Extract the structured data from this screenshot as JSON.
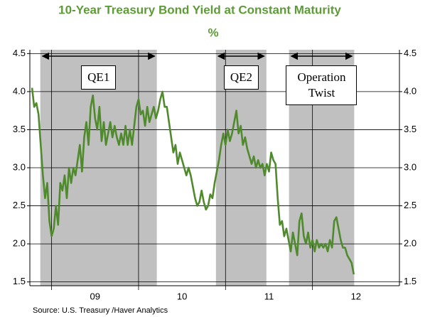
{
  "chart_data": {
    "type": "line",
    "title": "10-Year Treasury Bond Yield at Constant Maturity",
    "subtitle": "%",
    "source": "Source:  U.S. Treasury /Haver Analytics",
    "xlim": [
      2008.75,
      2013.0
    ],
    "ylim": [
      1.45,
      4.55
    ],
    "y2lim": [
      1.45,
      4.55
    ],
    "xticks": [
      {
        "value": 2009,
        "label": "09"
      },
      {
        "value": 2010,
        "label": "10"
      },
      {
        "value": 2011,
        "label": "11"
      },
      {
        "value": 2012,
        "label": "12"
      }
    ],
    "yticks": [
      {
        "value": 1.5,
        "label": "1.5"
      },
      {
        "value": 2,
        "label": "2.0"
      },
      {
        "value": 2.5,
        "label": "2.5"
      },
      {
        "value": 3,
        "label": "3.0"
      },
      {
        "value": 3.5,
        "label": "3.5"
      },
      {
        "value": 4,
        "label": "4.0"
      },
      {
        "value": 4.5,
        "label": "4.5"
      }
    ],
    "y2ticks": [
      {
        "value": 1.5,
        "label": "1.5"
      },
      {
        "value": 2,
        "label": "2.0"
      },
      {
        "value": 2.5,
        "label": "2.5"
      },
      {
        "value": 3,
        "label": "3.0"
      },
      {
        "value": 3.5,
        "label": "3.5"
      },
      {
        "value": 4,
        "label": "4.0"
      },
      {
        "value": 4.5,
        "label": "4.5"
      }
    ],
    "grid": true,
    "regions": [
      {
        "label": "QE1",
        "start": 2008.87,
        "end": 2010.21
      },
      {
        "label": "QE2",
        "start": 2010.89,
        "end": 2011.47
      },
      {
        "label": "Operation Twist",
        "start": 2011.73,
        "end": 2012.48
      }
    ],
    "region_color": "#c0c0c0",
    "x": [
      2008.775,
      2008.8,
      2008.825,
      2008.85,
      2008.875,
      2008.9,
      2008.925,
      2008.95,
      2008.975,
      2009.0,
      2009.025,
      2009.05,
      2009.075,
      2009.1,
      2009.125,
      2009.15,
      2009.175,
      2009.2,
      2009.225,
      2009.25,
      2009.275,
      2009.3,
      2009.325,
      2009.35,
      2009.375,
      2009.4,
      2009.425,
      2009.45,
      2009.475,
      2009.5,
      2009.525,
      2009.55,
      2009.575,
      2009.6,
      2009.625,
      2009.65,
      2009.675,
      2009.7,
      2009.725,
      2009.75,
      2009.775,
      2009.8,
      2009.825,
      2009.85,
      2009.875,
      2009.9,
      2009.925,
      2009.95,
      2009.975,
      2010.0,
      2010.025,
      2010.05,
      2010.075,
      2010.1,
      2010.125,
      2010.15,
      2010.175,
      2010.2,
      2010.225,
      2010.25,
      2010.275,
      2010.3,
      2010.325,
      2010.35,
      2010.375,
      2010.4,
      2010.425,
      2010.45,
      2010.475,
      2010.5,
      2010.525,
      2010.55,
      2010.575,
      2010.6,
      2010.625,
      2010.65,
      2010.675,
      2010.7,
      2010.725,
      2010.75,
      2010.775,
      2010.8,
      2010.825,
      2010.85,
      2010.875,
      2010.9,
      2010.925,
      2010.95,
      2010.975,
      2011.0,
      2011.025,
      2011.05,
      2011.075,
      2011.1,
      2011.125,
      2011.15,
      2011.175,
      2011.2,
      2011.225,
      2011.25,
      2011.275,
      2011.3,
      2011.325,
      2011.35,
      2011.375,
      2011.4,
      2011.425,
      2011.45,
      2011.475,
      2011.5,
      2011.525,
      2011.55,
      2011.575,
      2011.6,
      2011.625,
      2011.65,
      2011.675,
      2011.7,
      2011.725,
      2011.75,
      2011.775,
      2011.8,
      2011.825,
      2011.85,
      2011.875,
      2011.9,
      2011.925,
      2011.95,
      2011.975,
      2012.0,
      2012.025,
      2012.05,
      2012.075,
      2012.1,
      2012.125,
      2012.15,
      2012.175,
      2012.2,
      2012.225,
      2012.25,
      2012.275,
      2012.3,
      2012.325,
      2012.35,
      2012.375,
      2012.4,
      2012.425,
      2012.45,
      2012.475
    ],
    "series": [
      {
        "color": "#4f8a2c",
        "values": [
          4.05,
          3.8,
          3.85,
          3.7,
          3.3,
          2.9,
          2.6,
          2.8,
          2.3,
          2.1,
          2.2,
          2.5,
          2.25,
          2.8,
          2.7,
          2.9,
          2.6,
          3.0,
          2.8,
          3.0,
          2.9,
          3.1,
          3.3,
          2.95,
          3.4,
          3.6,
          3.3,
          3.8,
          3.95,
          3.65,
          3.5,
          3.8,
          3.35,
          3.6,
          3.3,
          3.45,
          3.6,
          3.4,
          3.55,
          3.4,
          3.3,
          3.45,
          3.3,
          3.55,
          3.3,
          3.5,
          3.3,
          3.55,
          3.8,
          3.9,
          3.7,
          3.75,
          3.55,
          3.8,
          3.6,
          3.7,
          3.8,
          3.65,
          3.75,
          3.9,
          4.0,
          3.8,
          3.8,
          3.6,
          3.4,
          3.2,
          3.3,
          3.05,
          3.2,
          3.1,
          3.0,
          2.9,
          3.0,
          2.9,
          2.75,
          2.6,
          2.5,
          2.55,
          2.7,
          2.55,
          2.45,
          2.5,
          2.65,
          2.6,
          2.8,
          2.95,
          3.1,
          3.3,
          3.45,
          3.3,
          3.5,
          3.35,
          3.45,
          3.6,
          3.75,
          3.45,
          3.55,
          3.3,
          3.4,
          3.25,
          3.15,
          3.05,
          3.15,
          3.0,
          3.1,
          3.0,
          3.05,
          2.9,
          3.05,
          2.95,
          3.2,
          3.1,
          3.05,
          2.6,
          2.25,
          2.3,
          2.1,
          2.2,
          2.05,
          1.9,
          2.15,
          2.0,
          1.85,
          2.3,
          2.4,
          2.1,
          2.0,
          2.15,
          1.95,
          2.05,
          1.9,
          2.05,
          1.95,
          2.0,
          1.95,
          2.0,
          1.9,
          2.05,
          1.95,
          2.3,
          2.35,
          2.2,
          2.05,
          1.95,
          1.95,
          1.85,
          1.8,
          1.75,
          1.6
        ]
      }
    ]
  }
}
